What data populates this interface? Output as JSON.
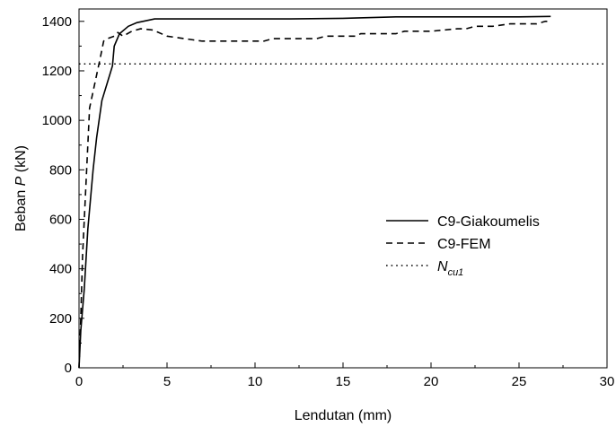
{
  "chart_data": {
    "type": "line",
    "xlabel": "Lendutan (mm)",
    "ylabel_prefix": "Beban ",
    "ylabel_italic": "P",
    "ylabel_suffix": " (kN)",
    "xlim": [
      0,
      30
    ],
    "ylim": [
      0,
      1450
    ],
    "x_ticks": [
      0,
      5,
      10,
      15,
      20,
      25,
      30
    ],
    "y_ticks": [
      0,
      200,
      400,
      600,
      800,
      1000,
      1200,
      1400
    ],
    "grid": false,
    "legend_position": "center-right",
    "series": [
      {
        "name": "C9-Giakoumelis",
        "style": "solid",
        "color": "#000000",
        "points": [
          [
            0,
            0
          ],
          [
            0.1,
            150
          ],
          [
            0.3,
            320
          ],
          [
            0.5,
            560
          ],
          [
            0.8,
            800
          ],
          [
            1.0,
            930
          ],
          [
            1.3,
            1080
          ],
          [
            1.6,
            1150
          ],
          [
            1.9,
            1220
          ],
          [
            2.0,
            1300
          ],
          [
            2.3,
            1350
          ],
          [
            2.8,
            1380
          ],
          [
            3.3,
            1395
          ],
          [
            4.3,
            1410
          ],
          [
            8,
            1410
          ],
          [
            12,
            1410
          ],
          [
            15,
            1412
          ],
          [
            18,
            1418
          ],
          [
            20,
            1418
          ],
          [
            25,
            1418
          ],
          [
            26.8,
            1420
          ]
        ]
      },
      {
        "name": "C9-FEM",
        "style": "dashed",
        "color": "#000000",
        "points": [
          [
            0,
            0
          ],
          [
            0.1,
            200
          ],
          [
            0.2,
            450
          ],
          [
            0.4,
            750
          ],
          [
            0.6,
            1050
          ],
          [
            0.9,
            1150
          ],
          [
            1.2,
            1250
          ],
          [
            1.4,
            1320
          ],
          [
            1.6,
            1330
          ],
          [
            2.0,
            1340
          ],
          [
            2.2,
            1355
          ],
          [
            2.5,
            1340
          ],
          [
            3.0,
            1360
          ],
          [
            3.5,
            1370
          ],
          [
            4.2,
            1365
          ],
          [
            5.0,
            1340
          ],
          [
            6.0,
            1330
          ],
          [
            7.0,
            1320
          ],
          [
            8.0,
            1320
          ],
          [
            10.5,
            1320
          ],
          [
            11.0,
            1330
          ],
          [
            13.5,
            1330
          ],
          [
            14.0,
            1340
          ],
          [
            15.7,
            1340
          ],
          [
            16.0,
            1350
          ],
          [
            18.0,
            1350
          ],
          [
            18.5,
            1360
          ],
          [
            20.0,
            1360
          ],
          [
            21.5,
            1370
          ],
          [
            22.0,
            1370
          ],
          [
            22.5,
            1380
          ],
          [
            23.5,
            1380
          ],
          [
            24.5,
            1390
          ],
          [
            26.0,
            1390
          ],
          [
            26.5,
            1400
          ],
          [
            26.8,
            1400
          ]
        ]
      },
      {
        "name_main": "N",
        "name_sub": "cu1",
        "style": "dotted",
        "color": "#000000",
        "points": [
          [
            0,
            1228
          ],
          [
            30,
            1228
          ]
        ]
      }
    ]
  }
}
